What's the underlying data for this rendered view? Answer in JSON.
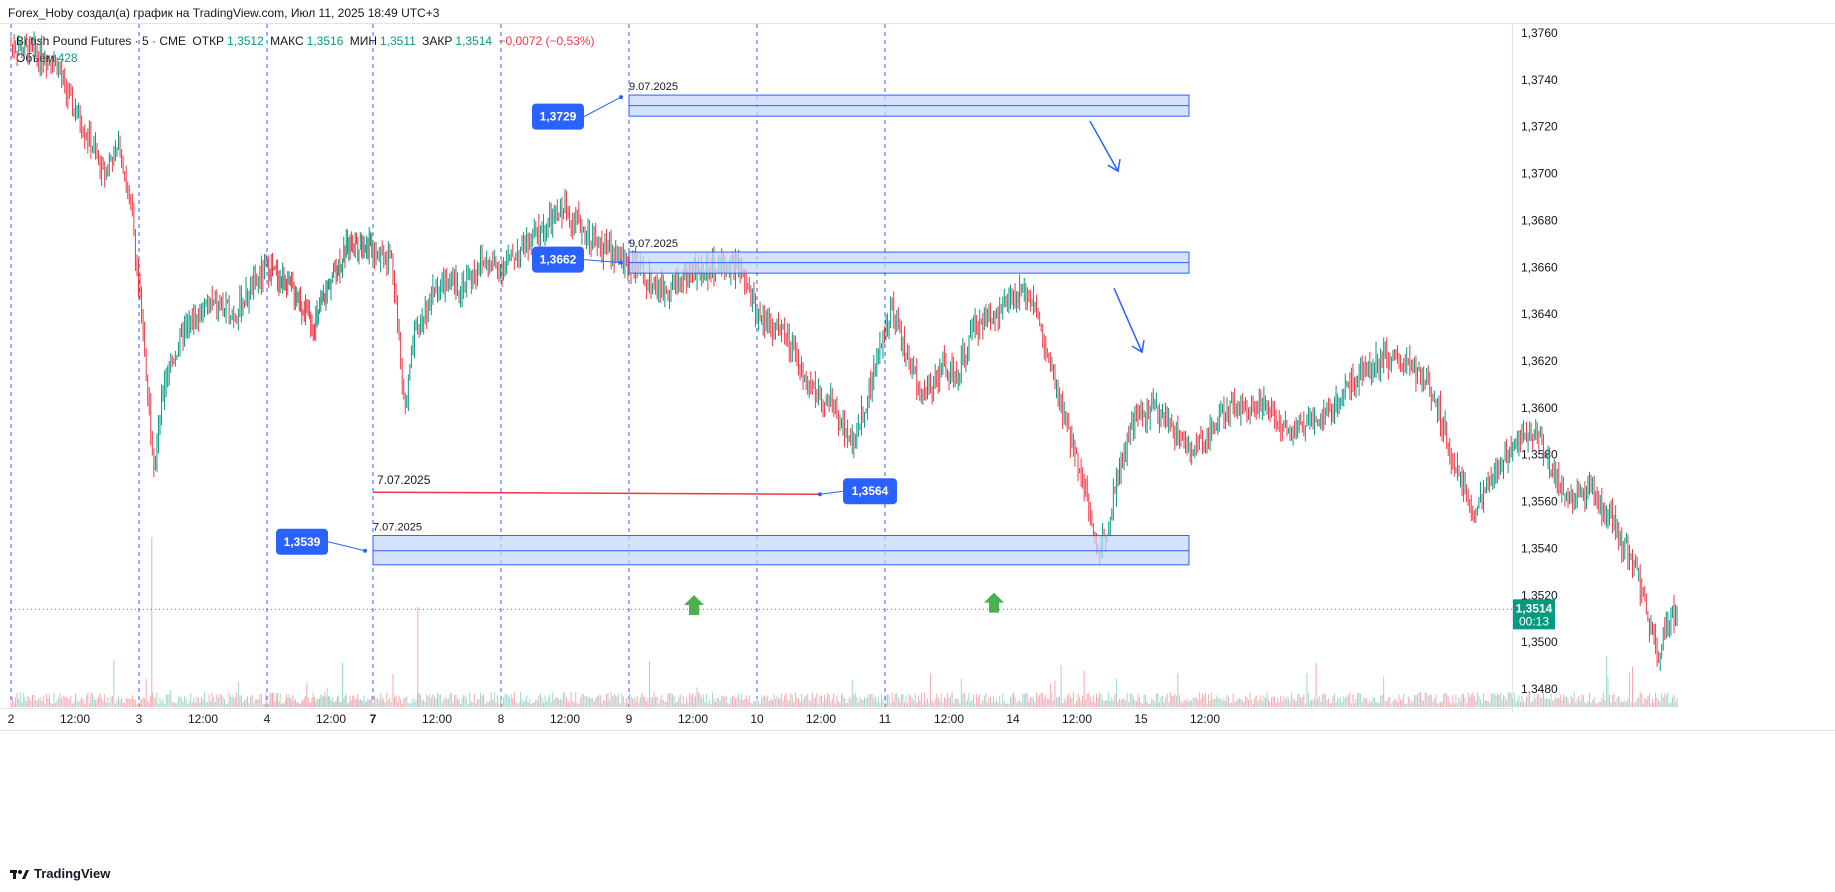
{
  "header": {
    "caption": "Forex_Hoby создал(а) график на TradingView.com, Июл 11, 2025 18:49 UTC+3"
  },
  "legend": {
    "symbol": "British Pound Futures · 5 · CME",
    "open_label": "ОТКР",
    "open": "1,3512",
    "high_label": "МАКС",
    "high": "1,3516",
    "low_label": "МИН",
    "low": "1,3511",
    "close_label": "ЗАКР",
    "close": "1,3514",
    "change": "−0,0072 (−0,53%)",
    "volume_label": "Объём",
    "volume": "428"
  },
  "footer": {
    "brand": "TradingView"
  },
  "colors": {
    "up": "#089981",
    "down": "#f23645",
    "zone_fill": "#c5d8fb",
    "zone_stroke": "#2962ff",
    "callout": "#2962ff",
    "grid_day": "#2962ff",
    "arrow_green": "#4caf50",
    "last_price": "#089981"
  },
  "chart_data": {
    "type": "candlestick",
    "symbol": "British Pound Futures",
    "interval": "5",
    "ylim": [
      1.3475,
      1.3765
    ],
    "y_ticks": [
      "1,3760",
      "1,3740",
      "1,3720",
      "1,3700",
      "1,3680",
      "1,3660",
      "1,3640",
      "1,3620",
      "1,3600",
      "1,3580",
      "1,3560",
      "1,3540",
      "1,3520",
      "1,3500",
      "1,3480"
    ],
    "x_ticks": [
      "2",
      "12:00",
      "3",
      "12:00",
      "4",
      "12:00",
      "7",
      "12:00",
      "8",
      "12:00",
      "9",
      "12:00",
      "10",
      "12:00",
      "11",
      "12:00",
      "14",
      "12:00",
      "15",
      "12:00"
    ],
    "day_separators": [
      "2",
      "3",
      "4",
      "7",
      "8",
      "9",
      "10",
      "11"
    ],
    "price_path": [
      [
        0,
        1.3755
      ],
      [
        0.15,
        1.3752
      ],
      [
        0.35,
        1.3748
      ],
      [
        0.45,
        1.3732
      ],
      [
        0.6,
        1.3716
      ],
      [
        0.72,
        1.37
      ],
      [
        0.85,
        1.3712
      ],
      [
        0.95,
        1.368
      ],
      [
        1.0,
        1.365
      ],
      [
        1.05,
        1.362
      ],
      [
        1.12,
        1.3575
      ],
      [
        1.2,
        1.3612
      ],
      [
        1.35,
        1.3632
      ],
      [
        1.55,
        1.3645
      ],
      [
        1.75,
        1.364
      ],
      [
        2.0,
        1.366
      ],
      [
        2.25,
        1.365
      ],
      [
        2.45,
        1.3635
      ],
      [
        2.6,
        1.3655
      ],
      [
        2.8,
        1.3672
      ],
      [
        3.0,
        1.3668
      ],
      [
        3.15,
        1.3664
      ],
      [
        3.25,
        1.3598
      ],
      [
        3.32,
        1.363
      ],
      [
        3.5,
        1.3652
      ],
      [
        3.7,
        1.3652
      ],
      [
        3.85,
        1.3662
      ],
      [
        4.0,
        1.366
      ],
      [
        4.2,
        1.367
      ],
      [
        4.5,
        1.3685
      ],
      [
        4.75,
        1.367
      ],
      [
        5.0,
        1.3662
      ],
      [
        5.25,
        1.365
      ],
      [
        5.5,
        1.3658
      ],
      [
        5.7,
        1.366
      ],
      [
        5.85,
        1.366
      ],
      [
        6.0,
        1.364
      ],
      [
        6.2,
        1.3632
      ],
      [
        6.4,
        1.361
      ],
      [
        6.6,
        1.36
      ],
      [
        6.75,
        1.3585
      ],
      [
        6.9,
        1.3612
      ],
      [
        7.05,
        1.3645
      ],
      [
        7.15,
        1.3625
      ],
      [
        7.3,
        1.3605
      ],
      [
        7.45,
        1.3618
      ],
      [
        7.55,
        1.3612
      ],
      [
        7.7,
        1.3635
      ],
      [
        7.9,
        1.3642
      ],
      [
        8.05,
        1.3648
      ],
      [
        8.15,
        1.3648
      ],
      [
        8.25,
        1.3625
      ],
      [
        8.4,
        1.3595
      ],
      [
        8.55,
        1.357
      ],
      [
        8.65,
        1.3538
      ],
      [
        8.72,
        1.3545
      ],
      [
        8.8,
        1.3568
      ],
      [
        8.95,
        1.3595
      ],
      [
        9.1,
        1.36
      ],
      [
        9.25,
        1.3592
      ],
      [
        9.4,
        1.358
      ],
      [
        9.55,
        1.3592
      ],
      [
        9.7,
        1.36
      ],
      [
        9.85,
        1.3602
      ],
      [
        10.0,
        1.36
      ],
      [
        10.15,
        1.359
      ],
      [
        10.3,
        1.3595
      ],
      [
        10.5,
        1.36
      ],
      [
        10.7,
        1.3615
      ],
      [
        10.9,
        1.3622
      ],
      [
        11.1,
        1.3618
      ],
      [
        11.3,
        1.3605
      ],
      [
        11.45,
        1.3575
      ],
      [
        11.6,
        1.3555
      ],
      [
        11.75,
        1.357
      ],
      [
        11.9,
        1.3585
      ],
      [
        12.0,
        1.359
      ],
      [
        12.1,
        1.359
      ],
      [
        12.2,
        1.3575
      ],
      [
        12.35,
        1.356
      ],
      [
        12.5,
        1.3565
      ],
      [
        12.65,
        1.3555
      ],
      [
        12.78,
        1.354
      ],
      [
        12.88,
        1.353
      ],
      [
        12.95,
        1.3512
      ],
      [
        13.0,
        1.3502
      ],
      [
        13.05,
        1.3495
      ],
      [
        13.1,
        1.3508
      ],
      [
        13.2,
        1.3514
      ]
    ],
    "last_price": "1,3514",
    "countdown": "00:13",
    "annotations": {
      "zones": [
        {
          "price_top": 1.37335,
          "price_bottom": 1.37245,
          "price_mid": 1.3729,
          "x_start_day": 9,
          "label": "1,3729",
          "date": "9.07.2025",
          "arrow": "down"
        },
        {
          "price_top": 1.36665,
          "price_bottom": 1.36575,
          "price_mid": 1.3662,
          "x_start_day": 9,
          "label": "1,3662",
          "date": "9.07.2025",
          "arrow": "down"
        },
        {
          "price_top": 1.35455,
          "price_bottom": 1.3533,
          "price_mid": 1.3539,
          "x_start_day": 7,
          "label": "1,3539",
          "date": "7.07.2025",
          "arrow": "none"
        }
      ],
      "line": {
        "price": 1.3564,
        "label": "1,3564",
        "date": "7.07.2025"
      },
      "up_arrows": [
        {
          "price": 1.3515
        },
        {
          "price": 1.3516
        }
      ]
    }
  }
}
